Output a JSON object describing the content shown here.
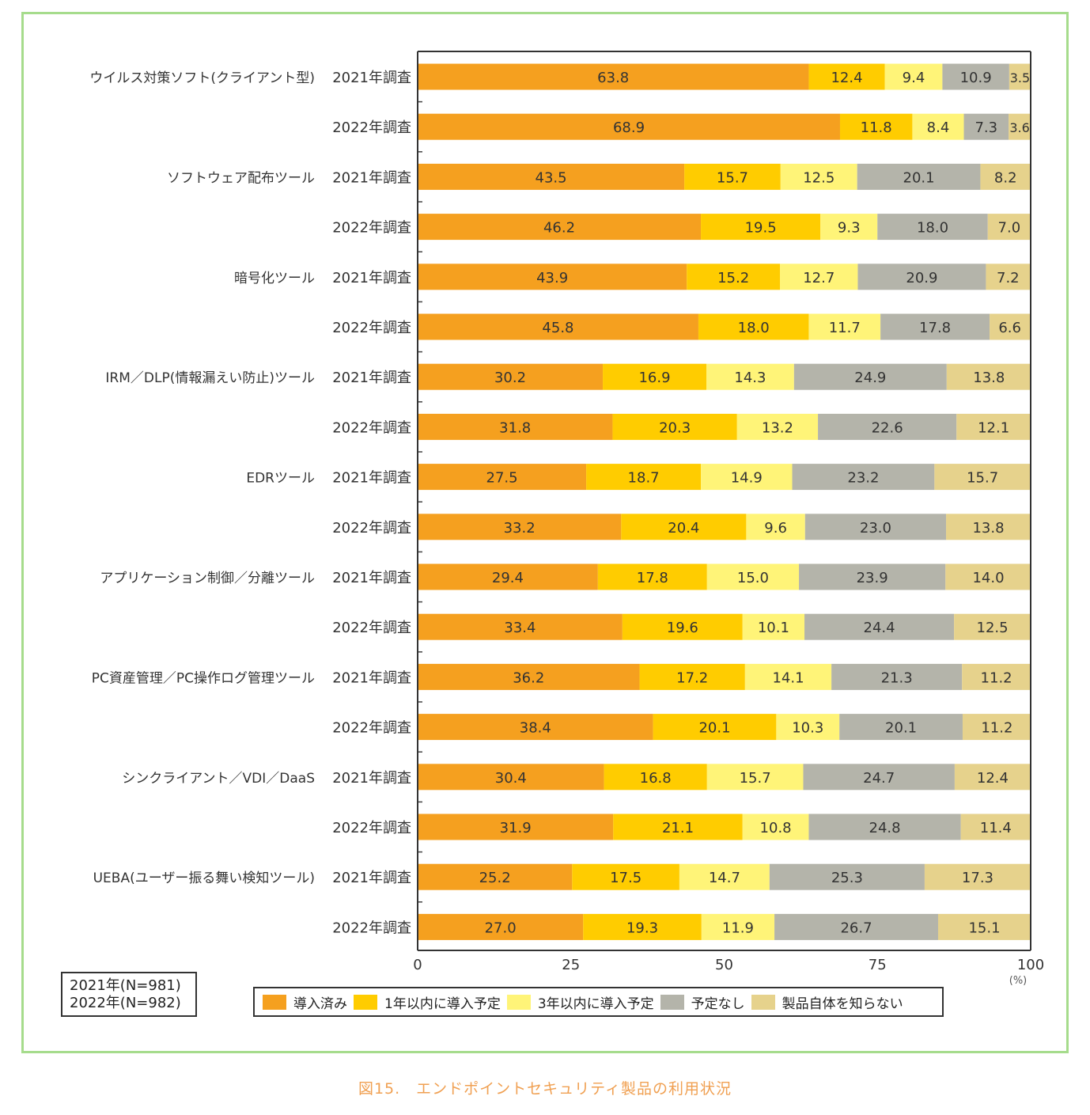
{
  "chart_data": {
    "type": "bar",
    "orientation": "horizontal",
    "stacked": true,
    "groups": [
      {
        "name": "ウイルス対策ソフト(クライアント型)"
      },
      {
        "name": "ソフトウェア配布ツール"
      },
      {
        "name": "暗号化ツール"
      },
      {
        "name": "IRM／DLP(情報漏えい防止)ツール"
      },
      {
        "name": "EDRツール"
      },
      {
        "name": "アプリケーション制御／分離ツール"
      },
      {
        "name": "PC資産管理／PC操作ログ管理ツール"
      },
      {
        "name": "シンクライアント／VDI／DaaS"
      },
      {
        "name": "UEBA(ユーザー振る舞い検知ツール)"
      }
    ],
    "rows": [
      {
        "group": 0,
        "label": "2021年調査",
        "values": [
          63.8,
          12.4,
          9.4,
          10.9,
          3.5
        ]
      },
      {
        "group": 0,
        "label": "2022年調査",
        "values": [
          68.9,
          11.8,
          8.4,
          7.3,
          3.6
        ]
      },
      {
        "group": 1,
        "label": "2021年調査",
        "values": [
          43.5,
          15.7,
          12.5,
          20.1,
          8.2
        ]
      },
      {
        "group": 1,
        "label": "2022年調査",
        "values": [
          46.2,
          19.5,
          9.3,
          18.0,
          7.0
        ]
      },
      {
        "group": 2,
        "label": "2021年調査",
        "values": [
          43.9,
          15.2,
          12.7,
          20.9,
          7.2
        ]
      },
      {
        "group": 2,
        "label": "2022年調査",
        "values": [
          45.8,
          18.0,
          11.7,
          17.8,
          6.6
        ]
      },
      {
        "group": 3,
        "label": "2021年調査",
        "values": [
          30.2,
          16.9,
          14.3,
          24.9,
          13.8
        ]
      },
      {
        "group": 3,
        "label": "2022年調査",
        "values": [
          31.8,
          20.3,
          13.2,
          22.6,
          12.1
        ]
      },
      {
        "group": 4,
        "label": "2021年調査",
        "values": [
          27.5,
          18.7,
          14.9,
          23.2,
          15.7
        ]
      },
      {
        "group": 4,
        "label": "2022年調査",
        "values": [
          33.2,
          20.4,
          9.6,
          23.0,
          13.8
        ]
      },
      {
        "group": 5,
        "label": "2021年調査",
        "values": [
          29.4,
          17.8,
          15.0,
          23.9,
          14.0
        ]
      },
      {
        "group": 5,
        "label": "2022年調査",
        "values": [
          33.4,
          19.6,
          10.1,
          24.4,
          12.5
        ]
      },
      {
        "group": 6,
        "label": "2021年調査",
        "values": [
          36.2,
          17.2,
          14.1,
          21.3,
          11.2
        ]
      },
      {
        "group": 6,
        "label": "2022年調査",
        "values": [
          38.4,
          20.1,
          10.3,
          20.1,
          11.2
        ]
      },
      {
        "group": 7,
        "label": "2021年調査",
        "values": [
          30.4,
          16.8,
          15.7,
          24.7,
          12.4
        ]
      },
      {
        "group": 7,
        "label": "2022年調査",
        "values": [
          31.9,
          21.1,
          10.8,
          24.8,
          11.4
        ]
      },
      {
        "group": 8,
        "label": "2021年調査",
        "values": [
          25.2,
          17.5,
          14.7,
          25.3,
          17.3
        ]
      },
      {
        "group": 8,
        "label": "2022年調査",
        "values": [
          27.0,
          19.3,
          11.9,
          26.7,
          15.1
        ]
      }
    ],
    "series": [
      {
        "name": "導入済み",
        "color": "#f5a01f"
      },
      {
        "name": "1年以内に導入予定",
        "color": "#ffcc00"
      },
      {
        "name": "3年以内に導入予定",
        "color": "#fff478"
      },
      {
        "name": "予定なし",
        "color": "#b4b4aa"
      },
      {
        "name": "製品自体を知らない",
        "color": "#e6d28c"
      }
    ],
    "xlim": [
      0,
      100
    ],
    "xticks": [
      "0",
      "25",
      "50",
      "75",
      "100"
    ],
    "xunit": "(%)",
    "legend_position": "bottom"
  },
  "sample_sizes": [
    "2021年(N=981)",
    "2022年(N=982)"
  ],
  "caption": "図15.　エンドポイントセキュリティ製品の利用状況"
}
